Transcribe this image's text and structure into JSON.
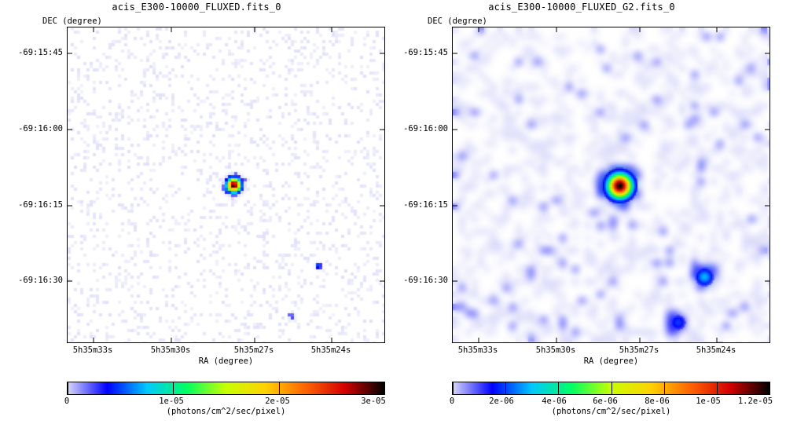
{
  "colors": {
    "background": "#ffffff",
    "axis": "#000000",
    "colormap": [
      "#ffffff",
      "#d8d8fa",
      "#0000ff",
      "#00c8ff",
      "#00ff64",
      "#c8ff00",
      "#ffd200",
      "#ff6400",
      "#d20000",
      "#000000"
    ]
  },
  "chart_data": [
    {
      "type": "heatmap",
      "title": "acis_E300-10000_FLUXED.fits_0",
      "xlabel": "RA (degree)",
      "ylabel": "DEC (degree)",
      "x_ticks": [
        "5h35m33s",
        "5h35m30s",
        "5h35m27s",
        "5h35m24s"
      ],
      "y_ticks": [
        "-69:15:45",
        "-69:16:00",
        "-69:16:15",
        "-69:16:30"
      ],
      "colorbar": {
        "label": "(photons/cm^2/sec/pixel)",
        "min": 0,
        "max": 3e-05,
        "ticks": [
          0,
          1e-05,
          2e-05,
          3e-05
        ],
        "tick_labels": [
          "0",
          "1e-05",
          "2e-05",
          "3e-05"
        ]
      },
      "image": {
        "style": "raw",
        "sources": [
          {
            "ra": "5h35m27.7s",
            "dec": "-69:16:11",
            "peak": 3e-05,
            "sigma_arcsec": 0.9
          },
          {
            "ra": "5h35m24.5s",
            "dec": "-69:16:27",
            "peak": 6e-06,
            "sigma_arcsec": 0.4
          },
          {
            "ra": "5h35m25.5s",
            "dec": "-69:16:37",
            "peak": 3e-06,
            "sigma_arcsec": 0.4
          }
        ]
      }
    },
    {
      "type": "heatmap",
      "title": "acis_E300-10000_FLUXED_G2.fits_0",
      "xlabel": "RA (degree)",
      "ylabel": "DEC (degree)",
      "x_ticks": [
        "5h35m33s",
        "5h35m30s",
        "5h35m27s",
        "5h35m24s"
      ],
      "y_ticks": [
        "-69:15:45",
        "-69:16:00",
        "-69:16:15",
        "-69:16:30"
      ],
      "colorbar": {
        "label": "(photons/cm^2/sec/pixel)",
        "min": 0,
        "max": 1.2e-05,
        "ticks": [
          0,
          2e-06,
          4e-06,
          6e-06,
          8e-06,
          1e-05,
          1.2e-05
        ],
        "tick_labels": [
          "0",
          "2e-06",
          "4e-06",
          "6e-06",
          "8e-06",
          "1e-05",
          "1.2e-05"
        ]
      },
      "image": {
        "style": "smoothed",
        "sources": [
          {
            "ra": "5h35m27.7s",
            "dec": "-69:16:11",
            "peak": 1.2e-05,
            "sigma_arcsec": 1.6
          },
          {
            "ra": "5h35m24.5s",
            "dec": "-69:16:29",
            "peak": 3e-06,
            "sigma_arcsec": 1.2
          },
          {
            "ra": "5h35m25.5s",
            "dec": "-69:16:38",
            "peak": 2e-06,
            "sigma_arcsec": 1.2
          }
        ]
      }
    }
  ]
}
